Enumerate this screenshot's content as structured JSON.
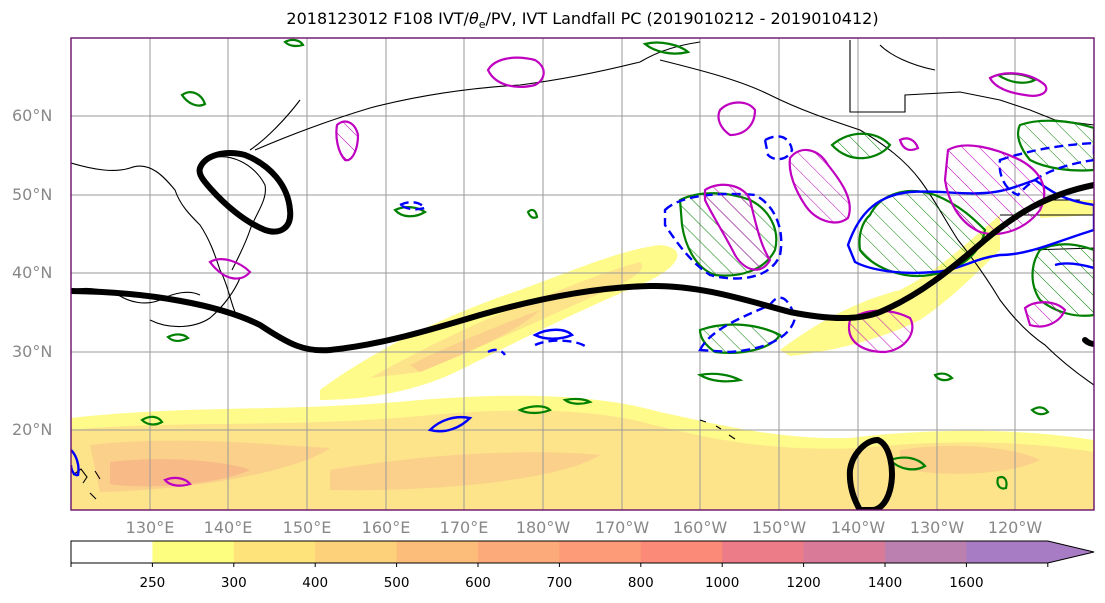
{
  "title": {
    "prefix": "2018123012 F108 IVT/",
    "theta": "θ",
    "theta_sub": "e",
    "suffix": "/PV, IVT Landfall PC (2019010212 - 2019010412)"
  },
  "map": {
    "latitude_labels": [
      "60°N",
      "50°N",
      "40°N",
      "30°N",
      "20°N"
    ],
    "longitude_labels": [
      "130°E",
      "140°E",
      "150°E",
      "160°E",
      "170°E",
      "180°W",
      "170°W",
      "160°W",
      "150°W",
      "140°W",
      "130°W",
      "120°W"
    ],
    "colors": {
      "frame": "#6a0f6a",
      "grid": "#9a9a9a",
      "coast": "#000000",
      "pc_contour": "#000000",
      "green_contour": "#008000",
      "blue_contour": "#0000ff",
      "magenta_contour": "#c000c0"
    }
  },
  "colorbar": {
    "levels": [
      "250",
      "300",
      "400",
      "500",
      "600",
      "700",
      "800",
      "1000",
      "1200",
      "1400",
      "1600"
    ],
    "colors": [
      "#ffffff",
      "#fdfd80",
      "#fde37a",
      "#fdd07a",
      "#fdbd7a",
      "#fdaa7a",
      "#fd9a78",
      "#fb8a78",
      "#eb7c88",
      "#d87a98",
      "#bb80b0",
      "#a87cc4"
    ]
  }
}
